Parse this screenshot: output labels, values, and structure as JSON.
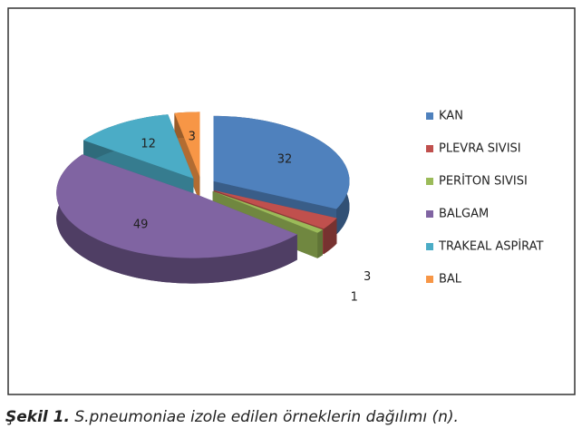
{
  "chart_data": {
    "type": "pie3d",
    "categories": [
      "KAN",
      "PLEVRA SIVISI",
      "PERİTON SIVISI",
      "BALGAM",
      "TRAKEAL ASPİRAT",
      "BAL"
    ],
    "values": [
      32,
      3,
      1,
      49,
      12,
      3
    ],
    "colors": [
      "#4f81bd",
      "#c0504d",
      "#9bbb59",
      "#8064a2",
      "#4bacc6",
      "#f79646"
    ],
    "legend": "right"
  },
  "caption": {
    "label": "Şekil 1.",
    "text": "S.pneumoniae izole edilen örneklerin dağılımı (n)."
  }
}
